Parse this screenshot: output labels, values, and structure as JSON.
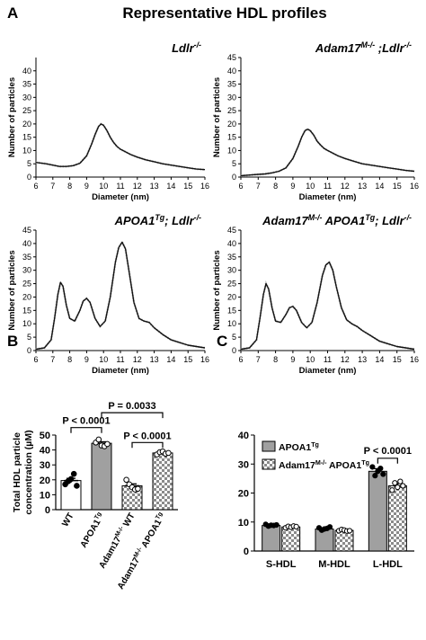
{
  "figure": {
    "title": "Representative HDL profiles",
    "panel_letters": [
      "A",
      "B",
      "C"
    ]
  },
  "chart_data": [
    {
      "id": "A1",
      "type": "line",
      "title_parts": [
        {
          "t": "Ldlr",
          "s": "",
          "u": "-/-"
        }
      ],
      "xlabel": "Diameter (nm)",
      "ylabel": "Number of particles",
      "xlim": [
        6,
        16
      ],
      "ylim": [
        0,
        45
      ],
      "xticks": [
        6,
        7,
        8,
        9,
        10,
        11,
        12,
        13,
        14,
        15,
        16
      ],
      "yticks": [
        0,
        5,
        10,
        15,
        20,
        25,
        30,
        35,
        40
      ],
      "series": [
        {
          "x": [
            6.0,
            6.6,
            7.0,
            7.4,
            7.8,
            8.2,
            8.6,
            9.0,
            9.3,
            9.5,
            9.7,
            9.85,
            10.0,
            10.2,
            10.4,
            10.6,
            10.8,
            11.0,
            11.3,
            11.6,
            12.0,
            12.5,
            13.0,
            13.5,
            14.0,
            14.5,
            15.0,
            15.5,
            16.0
          ],
          "y": [
            5.5,
            5.0,
            4.5,
            4.0,
            4.0,
            4.3,
            5.2,
            8.0,
            12.5,
            16.0,
            19.0,
            20.0,
            19.5,
            17.5,
            15.0,
            13.0,
            11.5,
            10.5,
            9.5,
            8.5,
            7.5,
            6.5,
            5.8,
            5.0,
            4.5,
            4.0,
            3.5,
            3.0,
            2.8
          ]
        }
      ]
    },
    {
      "id": "A2",
      "type": "line",
      "title_parts": [
        {
          "t": "Adam17",
          "s": "",
          "u": "M-/-"
        },
        {
          "t": " ;Ldlr",
          "s": "",
          "u": "-/-"
        }
      ],
      "xlabel": "Diameter (nm)",
      "ylabel": "Number of particles",
      "xlim": [
        6,
        16
      ],
      "ylim": [
        0,
        45
      ],
      "xticks": [
        6,
        7,
        8,
        9,
        10,
        11,
        12,
        13,
        14,
        15,
        16
      ],
      "yticks": [
        0,
        5,
        10,
        15,
        20,
        25,
        30,
        35,
        40,
        45
      ],
      "series": [
        {
          "x": [
            6.0,
            6.6,
            7.0,
            7.4,
            7.8,
            8.2,
            8.6,
            9.0,
            9.3,
            9.5,
            9.7,
            9.85,
            10.0,
            10.2,
            10.4,
            10.6,
            10.8,
            11.0,
            11.3,
            11.6,
            12.0,
            12.5,
            13.0,
            13.5,
            14.0,
            14.5,
            15.0,
            15.5,
            16.0
          ],
          "y": [
            0.5,
            0.8,
            1.0,
            1.2,
            1.6,
            2.2,
            3.5,
            7.0,
            11.5,
            15.0,
            17.5,
            18.0,
            17.5,
            15.8,
            13.5,
            12.0,
            10.8,
            10.0,
            9.0,
            8.0,
            7.0,
            6.0,
            5.0,
            4.5,
            4.0,
            3.5,
            3.0,
            2.5,
            2.2
          ]
        }
      ]
    },
    {
      "id": "A3",
      "type": "line",
      "title_parts": [
        {
          "t": "APOA1",
          "s": "",
          "u": "Tg"
        },
        {
          "t": "; Ldlr",
          "s": "",
          "u": "-/-"
        }
      ],
      "xlabel": "Diameter (nm)",
      "ylabel": "Number of particles",
      "xlim": [
        6,
        16
      ],
      "ylim": [
        0,
        45
      ],
      "xticks": [
        6,
        7,
        8,
        9,
        10,
        11,
        12,
        13,
        14,
        15,
        16
      ],
      "yticks": [
        0,
        5,
        10,
        15,
        20,
        25,
        30,
        35,
        40,
        45
      ],
      "series": [
        {
          "x": [
            6.0,
            6.5,
            6.9,
            7.1,
            7.3,
            7.45,
            7.6,
            7.8,
            8.0,
            8.3,
            8.6,
            8.8,
            9.0,
            9.2,
            9.5,
            9.8,
            10.1,
            10.4,
            10.7,
            10.9,
            11.1,
            11.3,
            11.5,
            11.8,
            12.1,
            12.4,
            12.7,
            13.0,
            13.5,
            14.0,
            14.5,
            15.0,
            15.5,
            16.0
          ],
          "y": [
            0.5,
            1.0,
            4.0,
            12.0,
            21.0,
            25.5,
            24.0,
            17.0,
            12.0,
            11.0,
            15.0,
            18.5,
            19.5,
            18.0,
            12.0,
            9.0,
            11.0,
            20.0,
            33.0,
            38.5,
            40.5,
            38.0,
            30.0,
            18.0,
            12.0,
            11.0,
            10.5,
            8.5,
            6.0,
            4.0,
            3.0,
            2.0,
            1.5,
            1.0
          ]
        }
      ]
    },
    {
      "id": "A4",
      "type": "line",
      "title_parts": [
        {
          "t": "Adam17",
          "s": "",
          "u": "M-/-"
        },
        {
          "t": " APOA1",
          "s": "",
          "u": "Tg"
        },
        {
          "t": "; Ldlr",
          "s": "",
          "u": "-/-"
        }
      ],
      "xlabel": "Diameter (nm)",
      "ylabel": "Number of particles",
      "xlim": [
        6,
        16
      ],
      "ylim": [
        0,
        45
      ],
      "xticks": [
        6,
        7,
        8,
        9,
        10,
        11,
        12,
        13,
        14,
        15,
        16
      ],
      "yticks": [
        0,
        5,
        10,
        15,
        20,
        25,
        30,
        35,
        40,
        45
      ],
      "series": [
        {
          "x": [
            6.0,
            6.5,
            6.9,
            7.1,
            7.3,
            7.45,
            7.6,
            7.8,
            8.0,
            8.3,
            8.6,
            8.8,
            9.0,
            9.2,
            9.5,
            9.8,
            10.1,
            10.4,
            10.7,
            10.9,
            11.1,
            11.3,
            11.5,
            11.8,
            12.1,
            12.4,
            12.7,
            13.0,
            13.5,
            14.0,
            14.5,
            15.0,
            15.5,
            16.0
          ],
          "y": [
            0.5,
            1.0,
            4.0,
            12.0,
            21.0,
            25.0,
            23.0,
            16.0,
            11.0,
            10.5,
            13.5,
            16.0,
            16.5,
            15.0,
            10.5,
            8.5,
            10.5,
            18.0,
            28.0,
            32.0,
            33.0,
            30.0,
            24.0,
            16.0,
            11.5,
            10.0,
            9.0,
            7.5,
            5.5,
            3.5,
            2.5,
            1.5,
            1.0,
            0.5
          ]
        }
      ]
    },
    {
      "id": "B",
      "type": "bar",
      "ylabel_lines": [
        "Total HDL particle",
        "concentration (µM)"
      ],
      "ylim": [
        0,
        50
      ],
      "yticks": [
        0,
        10,
        20,
        30,
        40,
        50
      ],
      "categories": [
        {
          "parts": [
            {
              "t": "WT",
              "u": ""
            }
          ]
        },
        {
          "parts": [
            {
              "t": "APOA1",
              "u": "Tg"
            }
          ]
        },
        {
          "parts": [
            {
              "t": "Adam17",
              "u": "M-/-"
            },
            {
              "t": " WT",
              "u": ""
            }
          ]
        },
        {
          "parts": [
            {
              "t": "Adam17",
              "u": "M-/-"
            },
            {
              "t": " APOA1",
              "u": "Tg"
            }
          ]
        }
      ],
      "values": [
        19.5,
        44.5,
        16.0,
        38.0
      ],
      "errors": [
        1.5,
        1.0,
        1.3,
        0.7
      ],
      "fills": [
        "#ffffff",
        "#a0a0a0",
        "checker",
        "checker"
      ],
      "points": [
        [
          17.0,
          19.0,
          20.5,
          24.0,
          16.0
        ],
        [
          45.0,
          47.0,
          43.0,
          42.5,
          44.0
        ],
        [
          20.0,
          17.0,
          15.0,
          13.5,
          14.0
        ],
        [
          37.0,
          38.5,
          39.0,
          37.5,
          38.0
        ]
      ],
      "annotations": [
        {
          "label": "P < 0.0001",
          "from": 0,
          "to": 1,
          "level": 55
        },
        {
          "label": "P = 0.0033",
          "from": 1,
          "to": 3,
          "level": 65
        },
        {
          "label": "P < 0.0001",
          "from": 2,
          "to": 3,
          "level": 45
        }
      ]
    },
    {
      "id": "C",
      "type": "bar",
      "ylim": [
        0,
        40
      ],
      "yticks": [
        0,
        10,
        20,
        30,
        40
      ],
      "categories": [
        "S-HDL",
        "M-HDL",
        "L-HDL"
      ],
      "series": [
        {
          "name_parts": [
            {
              "t": "APOA1",
              "u": "Tg"
            }
          ],
          "fill": "#a0a0a0",
          "values": [
            8.8,
            7.6,
            27.5
          ],
          "errors": [
            0.3,
            0.4,
            0.9
          ],
          "points": [
            [
              9.2,
              8.6,
              8.9,
              8.8,
              9.0
            ],
            [
              8.0,
              7.2,
              7.6,
              7.8,
              8.3
            ],
            [
              29.0,
              26.0,
              27.5,
              28.5,
              26.5
            ]
          ]
        },
        {
          "name_parts": [
            {
              "t": "Adam17",
              "u": "M-/-"
            },
            {
              "t": " APOA1",
              "u": "Tg"
            }
          ],
          "fill": "checker",
          "values": [
            8.3,
            7.1,
            22.5
          ],
          "errors": [
            0.3,
            0.3,
            0.8
          ],
          "points": [
            [
              8.0,
              8.5,
              8.2,
              8.6,
              8.4
            ],
            [
              7.0,
              7.4,
              7.2,
              6.9,
              7.0
            ],
            [
              21.0,
              23.5,
              22.0,
              24.0,
              22.5
            ]
          ]
        }
      ],
      "annotations": [
        {
          "label": "P < 0.0001",
          "category": 2,
          "level": 32
        }
      ]
    }
  ]
}
